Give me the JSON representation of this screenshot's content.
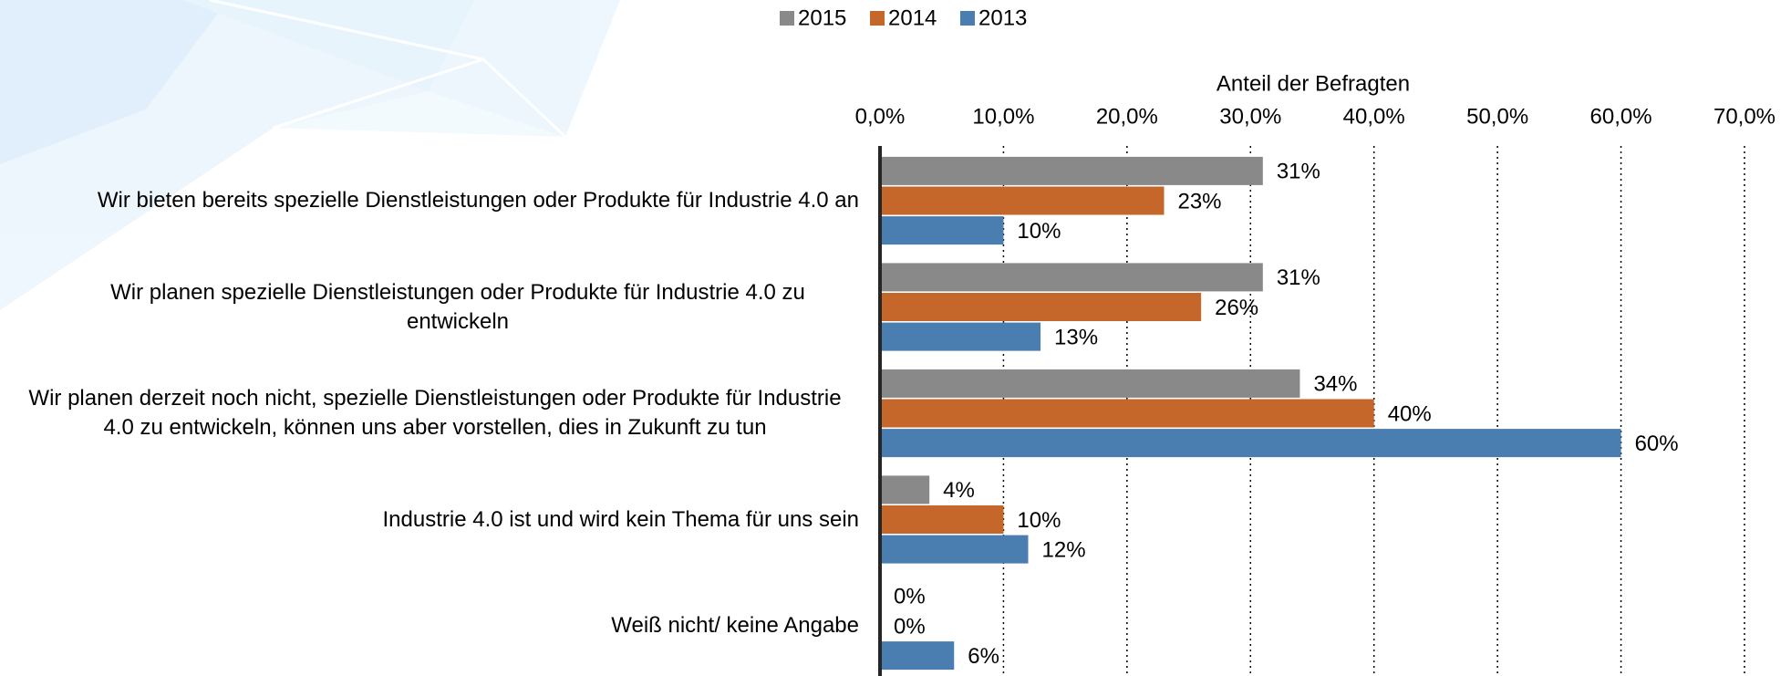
{
  "chart_data": {
    "type": "bar",
    "orientation": "horizontal",
    "x_label": "Anteil der Befragten",
    "categories": [
      "Wir bieten bereits spezielle Dienstleistungen oder Produkte für Industrie 4.0 an",
      "Wir planen spezielle Dienstleistungen oder Produkte für Industrie 4.0 zu entwickeln",
      "Wir planen derzeit noch nicht, spezielle Dienstleistungen oder Produkte für Industrie 4.0 zu entwickeln, können uns aber vorstellen, dies in Zukunft zu tun",
      "Industrie 4.0 ist und wird kein Thema für uns sein",
      "Weiß nicht/ keine Angabe"
    ],
    "series": [
      {
        "name": "2015",
        "color": "#898989",
        "values": [
          31,
          31,
          34,
          4,
          0
        ],
        "value_labels": [
          "31%",
          "31%",
          "34%",
          "4%",
          "0%"
        ]
      },
      {
        "name": "2014",
        "color": "#c5662a",
        "values": [
          23,
          26,
          40,
          10,
          0
        ],
        "value_labels": [
          "23%",
          "26%",
          "40%",
          "10%",
          "0%"
        ]
      },
      {
        "name": "2013",
        "color": "#4a7eb0",
        "values": [
          10,
          13,
          60,
          12,
          6
        ],
        "value_labels": [
          "10%",
          "13%",
          "60%",
          "12%",
          "6%"
        ]
      }
    ],
    "xlim": [
      0,
      70
    ],
    "xticks": [
      {
        "value": 0,
        "label": "0,0%"
      },
      {
        "value": 10,
        "label": "10,0%"
      },
      {
        "value": 20,
        "label": "20,0%"
      },
      {
        "value": 30,
        "label": "30,0%"
      },
      {
        "value": 40,
        "label": "40,0%"
      },
      {
        "value": 50,
        "label": "50,0%"
      },
      {
        "value": 60,
        "label": "60,0%"
      },
      {
        "value": 70,
        "label": "70,0%"
      }
    ],
    "grid": true,
    "legend": "top"
  }
}
